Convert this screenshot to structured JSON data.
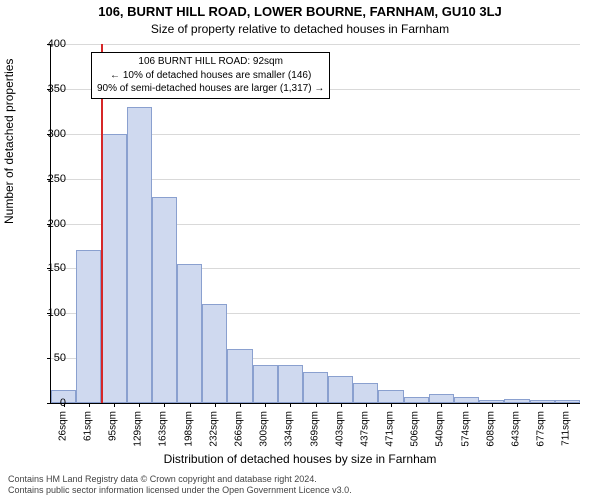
{
  "title": "106, BURNT HILL ROAD, LOWER BOURNE, FARNHAM, GU10 3LJ",
  "subtitle": "Size of property relative to detached houses in Farnham",
  "yaxis_label": "Number of detached properties",
  "xaxis_label": "Distribution of detached houses by size in Farnham",
  "footer_line1": "Contains HM Land Registry data © Crown copyright and database right 2024.",
  "footer_line2": "Contains public sector information licensed under the Open Government Licence v3.0.",
  "annotation": {
    "line1": "106 BURNT HILL ROAD: 92sqm",
    "line2": "← 10% of detached houses are smaller (146)",
    "line3": "90% of semi-detached houses are larger (1,317) →"
  },
  "chart": {
    "type": "histogram",
    "background_color": "#ffffff",
    "grid_color": "#d9d9d9",
    "bar_fill": "#cfd9ef",
    "bar_stroke": "#8aa0cf",
    "refline_color": "#d62728",
    "refline_x_category": "95sqm",
    "ylim": [
      0,
      400
    ],
    "ytick_step": 50,
    "title_fontsize": 13,
    "subtitle_fontsize": 12,
    "axis_label_fontsize": 12,
    "tick_fontsize": 11,
    "annotation_fontsize": 10,
    "categories": [
      "26sqm",
      "61sqm",
      "95sqm",
      "129sqm",
      "163sqm",
      "198sqm",
      "232sqm",
      "266sqm",
      "300sqm",
      "334sqm",
      "369sqm",
      "403sqm",
      "437sqm",
      "471sqm",
      "506sqm",
      "540sqm",
      "574sqm",
      "608sqm",
      "643sqm",
      "677sqm",
      "711sqm"
    ],
    "values": [
      15,
      170,
      300,
      330,
      230,
      155,
      110,
      60,
      42,
      42,
      35,
      30,
      22,
      15,
      7,
      10,
      7,
      3,
      5,
      3,
      3
    ]
  }
}
